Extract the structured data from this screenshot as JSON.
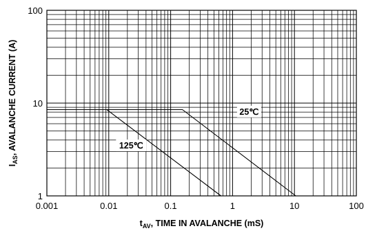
{
  "chart_data": {
    "type": "line",
    "x_scale": "log",
    "y_scale": "log",
    "xlim": [
      0.001,
      100
    ],
    "ylim": [
      1,
      100
    ],
    "grid": true,
    "xlabel": {
      "main": "t",
      "sub": "AV",
      "rest": ", TIME IN AVALANCHE (mS)"
    },
    "ylabel": {
      "main": "I",
      "sub": "AS",
      "rest": ", AVALANCHE CURRENT (A)"
    },
    "x_ticks": [
      {
        "value": 0.001,
        "label": "0.001"
      },
      {
        "value": 0.01,
        "label": "0.01"
      },
      {
        "value": 0.1,
        "label": "0.1"
      },
      {
        "value": 1,
        "label": "1"
      },
      {
        "value": 10,
        "label": "10"
      },
      {
        "value": 100,
        "label": "100"
      }
    ],
    "y_ticks": [
      {
        "value": 1,
        "label": "1"
      },
      {
        "value": 10,
        "label": "10"
      },
      {
        "value": 100,
        "label": "100"
      }
    ],
    "series": [
      {
        "name": "125℃",
        "x": [
          0.001,
          0.0093,
          0.65
        ],
        "y": [
          8.5,
          8.5,
          1
        ]
      },
      {
        "name": "25℃",
        "x": [
          0.001,
          0.155,
          10.5
        ],
        "y": [
          8.5,
          8.5,
          1
        ]
      }
    ],
    "annotations": [
      {
        "text": "125℃",
        "x": 0.023,
        "y": 3.5
      },
      {
        "text": "25℃",
        "x": 1.85,
        "y": 8.1
      }
    ]
  }
}
